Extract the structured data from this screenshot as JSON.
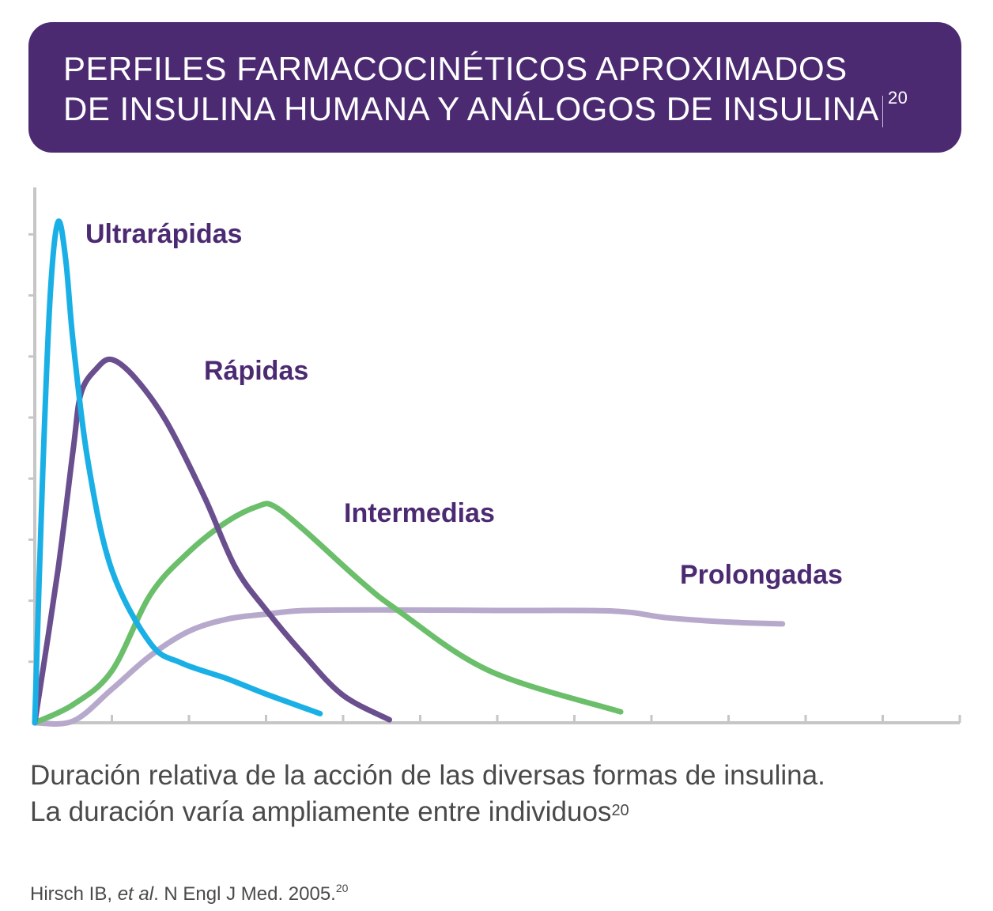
{
  "header": {
    "title_line1": "PERFILES FARMACOCINÉTICOS APROXIMADOS",
    "title_line2": "DE INSULINA HUMANA Y ANÁLOGOS DE INSULINA",
    "title_superscript": "20",
    "background_color": "#4c2a72"
  },
  "chart_data": {
    "type": "line",
    "title": "",
    "xlabel": "",
    "ylabel": "",
    "x_ticks": 12,
    "y_ticks": 8,
    "xlim": [
      0,
      12
    ],
    "ylim": [
      0,
      8.5
    ],
    "grid": false,
    "series": [
      {
        "name": "Ultrarápidas",
        "color": "#1ab0e6",
        "points": [
          [
            0,
            0
          ],
          [
            0.1,
            4.0
          ],
          [
            0.2,
            7.0
          ],
          [
            0.3,
            8.2
          ],
          [
            0.4,
            7.6
          ],
          [
            0.5,
            6.2
          ],
          [
            0.7,
            4.2
          ],
          [
            1.0,
            2.5
          ],
          [
            1.5,
            1.3
          ],
          [
            1.9,
            0.98
          ],
          [
            2.5,
            0.72
          ],
          [
            3.0,
            0.47
          ],
          [
            3.7,
            0.15
          ]
        ]
      },
      {
        "name": "Rápidas",
        "color": "#6a4f8f",
        "points": [
          [
            0,
            0
          ],
          [
            0.3,
            2.5
          ],
          [
            0.5,
            4.5
          ],
          [
            0.6,
            5.4
          ],
          [
            0.8,
            5.8
          ],
          [
            1.0,
            5.95
          ],
          [
            1.3,
            5.65
          ],
          [
            1.7,
            4.95
          ],
          [
            2.2,
            3.7
          ],
          [
            2.6,
            2.55
          ],
          [
            3.0,
            1.85
          ],
          [
            3.5,
            1.1
          ],
          [
            4.0,
            0.45
          ],
          [
            4.6,
            0.05
          ]
        ]
      },
      {
        "name": "Intermedias",
        "color": "#6bbf6b",
        "points": [
          [
            0,
            0
          ],
          [
            0.5,
            0.3
          ],
          [
            1.0,
            0.85
          ],
          [
            1.5,
            2.1
          ],
          [
            2.0,
            2.8
          ],
          [
            2.5,
            3.3
          ],
          [
            2.9,
            3.55
          ],
          [
            3.1,
            3.55
          ],
          [
            3.5,
            3.15
          ],
          [
            4.2,
            2.35
          ],
          [
            4.7,
            1.85
          ],
          [
            5.9,
            0.85
          ],
          [
            7.6,
            0.18
          ]
        ]
      },
      {
        "name": "Prolongadas",
        "color": "#b7a9cc",
        "points": [
          [
            0,
            0
          ],
          [
            0.5,
            0.03
          ],
          [
            1.0,
            0.55
          ],
          [
            1.5,
            1.1
          ],
          [
            2.0,
            1.5
          ],
          [
            2.5,
            1.7
          ],
          [
            3.0,
            1.78
          ],
          [
            3.5,
            1.84
          ],
          [
            4.5,
            1.85
          ],
          [
            6.0,
            1.84
          ],
          [
            7.5,
            1.83
          ],
          [
            8.2,
            1.72
          ],
          [
            9.0,
            1.65
          ],
          [
            9.7,
            1.62
          ]
        ]
      }
    ],
    "labels": [
      {
        "text": "Ultrarápidas",
        "color": "#4c2a72"
      },
      {
        "text": "Rápidas",
        "color": "#4c2a72"
      },
      {
        "text": "Intermedias",
        "color": "#4c2a72"
      },
      {
        "text": "Prolongadas",
        "color": "#4c2a72"
      }
    ],
    "axis_color": "#c6c6c6"
  },
  "caption": {
    "line1": "Duración relativa de la acción de las diversas formas de insulina.",
    "line2": "La duración varía ampliamente entre individuos",
    "superscript": "20"
  },
  "reference": {
    "prefix": "Hirsch IB, ",
    "italic": "et al",
    "suffix": ". N Engl J Med. 2005.",
    "superscript": "20"
  }
}
